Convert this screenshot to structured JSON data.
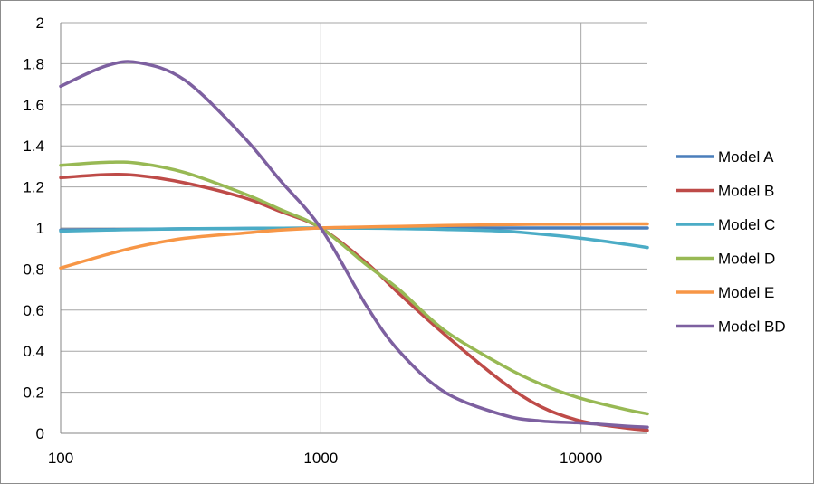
{
  "chart_data": {
    "type": "line",
    "title": "",
    "xlabel": "",
    "ylabel": "",
    "x_scale": "log",
    "xlim": [
      100,
      18000
    ],
    "ylim": [
      0,
      2
    ],
    "grid": true,
    "legend_position": "right",
    "x_ticks": [
      "100",
      "1000",
      "10000"
    ],
    "y_ticks": [
      "0",
      "0.2",
      "0.4",
      "0.6",
      "0.8",
      "1",
      "1.2",
      "1.4",
      "1.6",
      "1.8",
      "2"
    ],
    "x": [
      100,
      150,
      200,
      300,
      500,
      700,
      1000,
      1500,
      2000,
      3000,
      5000,
      7000,
      10000,
      15000,
      18000
    ],
    "series": [
      {
        "name": "Model A",
        "color": "#4a7ebb",
        "values": [
          0.99,
          0.992,
          0.994,
          0.996,
          0.998,
          0.999,
          1.0,
          1.0,
          1.0,
          1.0,
          1.0,
          1.0,
          1.0,
          1.0,
          1.0
        ]
      },
      {
        "name": "Model B",
        "color": "#be4b48",
        "values": [
          1.245,
          1.26,
          1.255,
          1.22,
          1.15,
          1.08,
          1.0,
          0.83,
          0.68,
          0.48,
          0.25,
          0.13,
          0.06,
          0.025,
          0.015
        ]
      },
      {
        "name": "Model C",
        "color": "#4bacc6",
        "values": [
          0.985,
          0.99,
          0.993,
          0.996,
          0.998,
          0.999,
          1.0,
          0.999,
          0.997,
          0.993,
          0.985,
          0.97,
          0.95,
          0.92,
          0.905
        ]
      },
      {
        "name": "Model D",
        "color": "#98b954",
        "values": [
          1.305,
          1.32,
          1.315,
          1.27,
          1.17,
          1.09,
          1.0,
          0.82,
          0.7,
          0.5,
          0.33,
          0.24,
          0.17,
          0.115,
          0.095
        ]
      },
      {
        "name": "Model E",
        "color": "#f79646",
        "values": [
          0.805,
          0.87,
          0.91,
          0.95,
          0.975,
          0.99,
          1.0,
          1.005,
          1.008,
          1.012,
          1.016,
          1.018,
          1.019,
          1.02,
          1.02
        ]
      },
      {
        "name": "Model BD",
        "color": "#7d60a0",
        "values": [
          1.69,
          1.79,
          1.805,
          1.72,
          1.45,
          1.23,
          1.0,
          0.62,
          0.4,
          0.2,
          0.09,
          0.06,
          0.05,
          0.035,
          0.03
        ]
      }
    ]
  }
}
